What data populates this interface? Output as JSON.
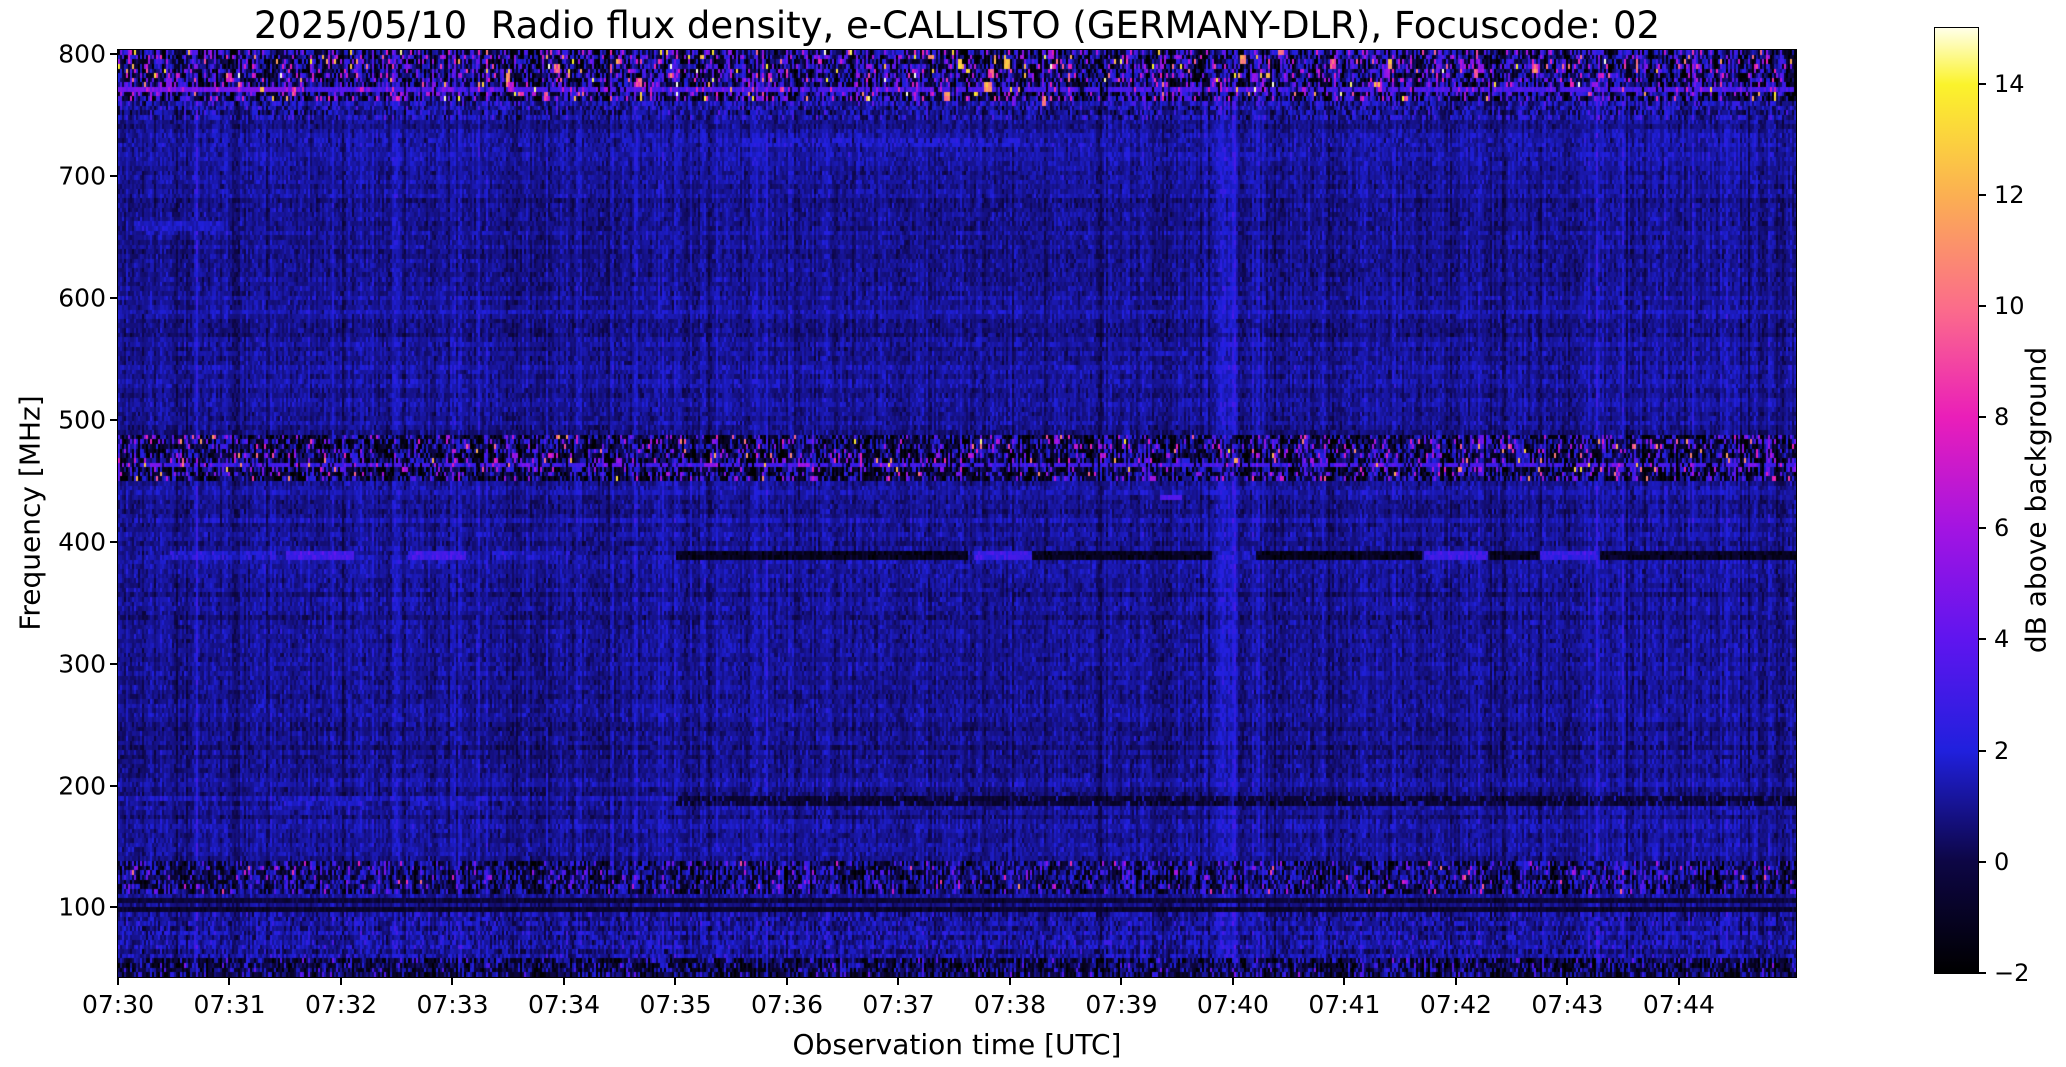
{
  "chart_data": {
    "type": "heatmap",
    "subtype": "radio-spectrogram",
    "title": "2025/05/10  Radio flux density, e-CALLISTO (GERMANY-DLR), Focuscode: 02",
    "xlabel": "Observation time [UTC]",
    "ylabel": "Frequency [MHz]",
    "x_ticks": [
      {
        "minute": 0,
        "label": "07:30"
      },
      {
        "minute": 1,
        "label": "07:31"
      },
      {
        "minute": 2,
        "label": "07:32"
      },
      {
        "minute": 3,
        "label": "07:33"
      },
      {
        "minute": 4,
        "label": "07:34"
      },
      {
        "minute": 5,
        "label": "07:35"
      },
      {
        "minute": 6,
        "label": "07:36"
      },
      {
        "minute": 7,
        "label": "07:37"
      },
      {
        "minute": 8,
        "label": "07:38"
      },
      {
        "minute": 9,
        "label": "07:39"
      },
      {
        "minute": 10,
        "label": "07:40"
      },
      {
        "minute": 11,
        "label": "07:41"
      },
      {
        "minute": 12,
        "label": "07:42"
      },
      {
        "minute": 13,
        "label": "07:43"
      },
      {
        "minute": 14,
        "label": "07:44"
      }
    ],
    "x_range_minutes": [
      0,
      15.05
    ],
    "y_ticks": [
      {
        "value": 800,
        "label": "800"
      },
      {
        "value": 700,
        "label": "700"
      },
      {
        "value": 600,
        "label": "600"
      },
      {
        "value": 500,
        "label": "500"
      },
      {
        "value": 400,
        "label": "400"
      },
      {
        "value": 300,
        "label": "300"
      },
      {
        "value": 200,
        "label": "200"
      },
      {
        "value": 100,
        "label": "100"
      }
    ],
    "y_range_mhz": [
      43,
      803
    ],
    "colorbar": {
      "label": "dB above background",
      "min": -2,
      "max": 15,
      "ticks": [
        {
          "value": 14,
          "label": "14"
        },
        {
          "value": 12,
          "label": "12"
        },
        {
          "value": 10,
          "label": "10"
        },
        {
          "value": 8,
          "label": "8"
        },
        {
          "value": 6,
          "label": "6"
        },
        {
          "value": 4,
          "label": "4"
        },
        {
          "value": 2,
          "label": "2"
        },
        {
          "value": 0,
          "label": "0"
        },
        {
          "value": -2,
          "label": "−2"
        }
      ]
    },
    "colormap_stops": [
      {
        "t": 0.0,
        "color": "#000000"
      },
      {
        "t": 0.118,
        "color": "#0d0645"
      },
      {
        "t": 0.235,
        "color": "#2020dd"
      },
      {
        "t": 0.353,
        "color": "#5f15ef"
      },
      {
        "t": 0.47,
        "color": "#a314e2"
      },
      {
        "t": 0.588,
        "color": "#ea1eb9"
      },
      {
        "t": 0.7,
        "color": "#fb6a8c"
      },
      {
        "t": 0.82,
        "color": "#fbae53"
      },
      {
        "t": 0.94,
        "color": "#fbf32b"
      },
      {
        "t": 1.0,
        "color": "#ffffe8"
      }
    ],
    "spectrogram": {
      "seed": 1715,
      "grid": {
        "cols": 839,
        "rows": 200
      },
      "background": {
        "mean_db": 1.0,
        "sigma_db": 0.38,
        "col_sigma_db": 0.3,
        "row_sigma_db": 0.18,
        "streak_p": 0.03,
        "streak_db": 0.9
      },
      "bands": [
        {
          "f": [
            762,
            803
          ],
          "type": "speckle",
          "col_sigma": 1.1,
          "mix": [
            [
              0.42,
              -2,
              1.8
            ],
            [
              0.88,
              0.5,
              2.5
            ],
            [
              0.975,
              3.5,
              4
            ],
            [
              1.0,
              8,
              7
            ]
          ]
        },
        {
          "f": [
            768,
            772.5
          ],
          "type": "line",
          "db": 3.2,
          "dot": 0.85
        },
        {
          "f": [
            768,
            772.5
          ],
          "type": "line",
          "db": 4.6,
          "t": [
            0,
            1.6
          ]
        },
        {
          "f": [
            745,
            762
          ],
          "type": "extra_noise",
          "mean": 0.35,
          "sigma": 0.85
        },
        {
          "f": [
            722,
            730
          ],
          "type": "line",
          "db": 1.8,
          "dot": 0.3
        },
        {
          "f": [
            722,
            730
          ],
          "type": "line",
          "db": 2.0,
          "t": [
            5.6,
            8.1
          ],
          "dot": 0.6
        },
        {
          "f": [
            586,
            590
          ],
          "type": "line",
          "db": 1.4,
          "dot": 0.8
        },
        {
          "f": [
            448,
            487
          ],
          "type": "speckle",
          "col_sigma": 1.0,
          "mix": [
            [
              0.5,
              -2,
              1.6
            ],
            [
              0.9,
              0.3,
              2.2
            ],
            [
              0.98,
              3,
              3.5
            ],
            [
              1.0,
              7,
              6
            ]
          ]
        },
        {
          "f": [
            461.5,
            466
          ],
          "type": "line",
          "db": 3.0,
          "dot": 0.7
        },
        {
          "f": [
            386,
            393.5
          ],
          "type": "segments",
          "segs": [
            {
              "t": [
                0.45,
                1.42
              ],
              "db": 1.9
            },
            {
              "t": [
                1.5,
                2.12
              ],
              "db": 3.0
            },
            {
              "t": [
                2.6,
                3.12
              ],
              "db": 3.0
            },
            {
              "t": [
                3.35,
                4.05
              ],
              "db": 1.7
            },
            {
              "t": [
                5.0,
                7.62
              ],
              "db": -1.1
            },
            {
              "t": [
                7.68,
                8.2
              ],
              "db": 2.9
            },
            {
              "t": [
                8.2,
                9.82
              ],
              "db": -1.1
            },
            {
              "t": [
                9.85,
                10.2
              ],
              "db": 1.6
            },
            {
              "t": [
                10.2,
                11.7
              ],
              "db": -1.2
            },
            {
              "t": [
                11.72,
                12.28
              ],
              "db": 2.8
            },
            {
              "t": [
                12.28,
                12.76
              ],
              "db": -1.0
            },
            {
              "t": [
                12.76,
                13.26
              ],
              "db": 2.7
            },
            {
              "t": [
                13.3,
                15.05
              ],
              "db": -1.0
            }
          ]
        },
        {
          "f": [
            184,
            192.5
          ],
          "type": "segments",
          "dots": 0.12,
          "segs": [
            {
              "t": [
                1.45,
                2.2
              ],
              "db": 1.6
            },
            {
              "t": [
                2.65,
                3.3
              ],
              "db": 1.6
            },
            {
              "t": [
                5.0,
                15.05
              ],
              "db": -0.45
            }
          ]
        },
        {
          "f": [
            112,
            139
          ],
          "type": "speckle",
          "col_sigma": 0.8,
          "mix": [
            [
              0.45,
              -1.6,
              1.7
            ],
            [
              0.92,
              0.4,
              1.9
            ],
            [
              0.99,
              2.5,
              2.5
            ],
            [
              1.0,
              6,
              4
            ]
          ]
        },
        {
          "f": [
            96,
            100
          ],
          "type": "line",
          "db": -0.6
        },
        {
          "f": [
            103,
            106
          ],
          "type": "line",
          "db": -0.35
        },
        {
          "f": [
            60,
            95
          ],
          "type": "extra_noise",
          "mean": 0.25,
          "sigma": 0.5
        },
        {
          "f": [
            43,
            60
          ],
          "type": "speckle",
          "col_sigma": 0.7,
          "mix": [
            [
              0.5,
              -1.8,
              1.5
            ],
            [
              0.95,
              0.1,
              1.7
            ],
            [
              1.0,
              1.8,
              2.4
            ]
          ]
        }
      ],
      "features": [
        {
          "t": [
            9.34,
            9.54
          ],
          "f": [
            434,
            439
          ],
          "db": 3.4
        },
        {
          "t": [
            0.15,
            0.95
          ],
          "f": [
            654,
            661
          ],
          "db": 1.7
        },
        {
          "t": [
            9.2,
            9.6
          ],
          "f": [
            552,
            557
          ],
          "db": 1.5
        }
      ],
      "verticals": [
        {
          "t": 9.93,
          "w": 0.1,
          "db": 0.8
        },
        {
          "t": 4.93,
          "w": 0.09,
          "db": 0.45
        },
        {
          "t": 5.78,
          "w": 0.07,
          "db": 0.3
        },
        {
          "t": 13.2,
          "w": 0.07,
          "db": 0.3
        },
        {
          "t": 2.2,
          "w": 0.05,
          "db": 0.25
        }
      ],
      "blobs": [
        {
          "n": 45,
          "f": [
            762,
            801
          ],
          "db": [
            8,
            15
          ],
          "w": 3,
          "h": 2
        },
        {
          "n": 30,
          "f": [
            762,
            801
          ],
          "db": [
            4,
            8
          ],
          "w": 3,
          "h": 2
        },
        {
          "n": 10,
          "f": [
            767,
            774
          ],
          "db": [
            6,
            12
          ],
          "w": 2,
          "h": 1
        },
        {
          "n": 1,
          "t": [
            0.1,
            0.2
          ],
          "f": [
            768,
            772
          ],
          "db": [
            8,
            9
          ],
          "w": 2,
          "h": 1
        },
        {
          "n": 1,
          "t": [
            1.2,
            1.3
          ],
          "f": [
            768,
            772
          ],
          "db": [
            12,
            14
          ],
          "w": 2,
          "h": 1
        },
        {
          "n": 8,
          "f": [
            450,
            485
          ],
          "db": [
            8.5,
            13
          ],
          "w": 2,
          "h": 1
        },
        {
          "n": 25,
          "f": [
            450,
            485
          ],
          "db": [
            5,
            8
          ],
          "w": 3,
          "h": 1
        },
        {
          "n": 14,
          "f": [
            461,
            466
          ],
          "db": [
            4.5,
            6.5
          ],
          "w": 6,
          "h": 1
        },
        {
          "n": 12,
          "f": [
            114,
            136
          ],
          "db": [
            4.5,
            8
          ],
          "w": 2,
          "h": 1
        }
      ]
    }
  }
}
